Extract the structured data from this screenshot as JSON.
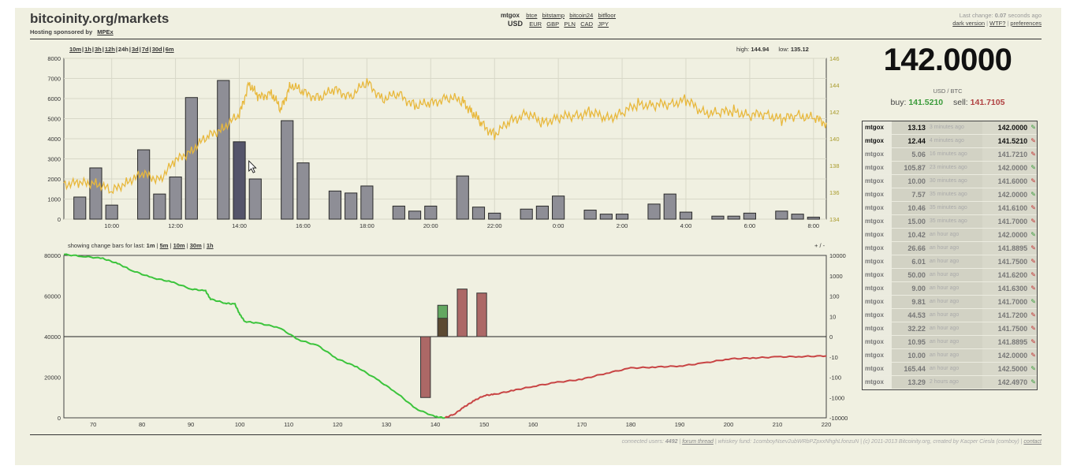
{
  "header": {
    "site_title": "bitcoinity.org/markets",
    "sponsor_prefix": "Hosting sponsored by",
    "sponsor_link": "MPEx"
  },
  "exchanges": {
    "selected": "mtgox",
    "others": [
      "btce",
      "bitstamp",
      "bitcoin24",
      "bitfloor"
    ],
    "currency_selected": "USD",
    "currencies": [
      "EUR",
      "GBP",
      "PLN",
      "CAD",
      "JPY"
    ]
  },
  "top_right": {
    "last_change_prefix": "Last change:",
    "last_change_value": "0.07",
    "last_change_suffix": "seconds ago",
    "links": [
      "dark version",
      "WTF?",
      "preferences"
    ]
  },
  "ranges": {
    "items": [
      "10m",
      "1h",
      "3h",
      "12h",
      "24h",
      "3d",
      "7d",
      "30d",
      "6m"
    ],
    "selected": "24h"
  },
  "hilo": {
    "high_label": "high:",
    "high_value": "144.94",
    "low_label": "low:",
    "low_value": "135.12"
  },
  "ticker": {
    "price": "142.0000",
    "pair": "USD / BTC",
    "buy_label": "buy:",
    "buy_value": "141.5210",
    "sell_label": "sell:",
    "sell_value": "141.7105"
  },
  "change_bars": {
    "prefix": "showing change bars for last:",
    "options": [
      "1m",
      "5m",
      "10m",
      "30m",
      "1h"
    ],
    "plusminus": "+ / -"
  },
  "trades": [
    {
      "exchange": "mtgox",
      "amount": "13.13",
      "ago": "3 minutes ago",
      "price": "142.0000",
      "dir": "up"
    },
    {
      "exchange": "mtgox",
      "amount": "12.44",
      "ago": "4 minutes ago",
      "price": "141.5210",
      "dir": "down"
    },
    {
      "exchange": "mtgox",
      "amount": "5.06",
      "ago": "16 minutes ago",
      "price": "141.7210",
      "dir": "down"
    },
    {
      "exchange": "mtgox",
      "amount": "105.87",
      "ago": "23 minutes ago",
      "price": "142.0000",
      "dir": "up"
    },
    {
      "exchange": "mtgox",
      "amount": "10.00",
      "ago": "30 minutes ago",
      "price": "141.6000",
      "dir": "down"
    },
    {
      "exchange": "mtgox",
      "amount": "7.57",
      "ago": "35 minutes ago",
      "price": "142.0000",
      "dir": "up"
    },
    {
      "exchange": "mtgox",
      "amount": "10.46",
      "ago": "35 minutes ago",
      "price": "141.6100",
      "dir": "down"
    },
    {
      "exchange": "mtgox",
      "amount": "15.00",
      "ago": "35 minutes ago",
      "price": "141.7000",
      "dir": "down"
    },
    {
      "exchange": "mtgox",
      "amount": "10.42",
      "ago": "an hour ago",
      "price": "142.0000",
      "dir": "up"
    },
    {
      "exchange": "mtgox",
      "amount": "26.66",
      "ago": "an hour ago",
      "price": "141.8895",
      "dir": "down"
    },
    {
      "exchange": "mtgox",
      "amount": "6.01",
      "ago": "an hour ago",
      "price": "141.7500",
      "dir": "down"
    },
    {
      "exchange": "mtgox",
      "amount": "50.00",
      "ago": "an hour ago",
      "price": "141.6200",
      "dir": "down"
    },
    {
      "exchange": "mtgox",
      "amount": "9.00",
      "ago": "an hour ago",
      "price": "141.6300",
      "dir": "down"
    },
    {
      "exchange": "mtgox",
      "amount": "9.81",
      "ago": "an hour ago",
      "price": "141.7000",
      "dir": "up"
    },
    {
      "exchange": "mtgox",
      "amount": "44.53",
      "ago": "an hour ago",
      "price": "141.7200",
      "dir": "down"
    },
    {
      "exchange": "mtgox",
      "amount": "32.22",
      "ago": "an hour ago",
      "price": "141.7500",
      "dir": "down"
    },
    {
      "exchange": "mtgox",
      "amount": "10.95",
      "ago": "an hour ago",
      "price": "141.8895",
      "dir": "down"
    },
    {
      "exchange": "mtgox",
      "amount": "10.00",
      "ago": "an hour ago",
      "price": "142.0000",
      "dir": "down"
    },
    {
      "exchange": "mtgox",
      "amount": "165.44",
      "ago": "an hour ago",
      "price": "142.5000",
      "dir": "up"
    },
    {
      "exchange": "mtgox",
      "amount": "13.29",
      "ago": "2 hours ago",
      "price": "142.4970",
      "dir": "up"
    }
  ],
  "footer": {
    "connected_label": "connected users:",
    "connected_value": "4492",
    "forum_link": "forum thread",
    "fund_text": "whiskey fund: 1comboyNsev2ubWRbPZpxxNhghLfonzuN",
    "copyright": "(c) 2011-2013 Bitcoinity.org, created by Kacper Ciesla (comboy)",
    "contact_link": "contact"
  },
  "colors": {
    "price_line": "#e8b83c",
    "volume_bar": "#8e8e96",
    "volume_bar_hover": "#55556a",
    "bid_line": "#3cc43c",
    "ask_line": "#c84444",
    "change_up": "#4a9a4a",
    "change_down": "#a05050"
  },
  "chart_data": [
    {
      "type": "bar+line",
      "name_hint": "price-volume",
      "x_ticks": [
        "10:00",
        "12:00",
        "14:00",
        "16:00",
        "18:00",
        "20:00",
        "22:00",
        "0:00",
        "2:00",
        "4:00",
        "6:00",
        "8:00"
      ],
      "x_range_hours": [
        8.5,
        32.4
      ],
      "y_left_ticks": [
        0,
        1000,
        2000,
        3000,
        4000,
        5000,
        6000,
        7000,
        8000
      ],
      "y_left_range": [
        0,
        8000
      ],
      "y_right_ticks": [
        134,
        136,
        138,
        140,
        142,
        144,
        146
      ],
      "y_right_range": [
        134,
        146
      ],
      "volume_bars": {
        "hours": [
          9,
          9.5,
          10,
          11,
          11.5,
          12,
          12.5,
          13.5,
          14,
          14.5,
          15.5,
          16,
          17,
          17.5,
          18,
          19,
          19.5,
          20,
          21,
          21.5,
          22,
          23,
          23.5,
          24,
          25,
          25.5,
          26,
          27,
          27.5,
          28,
          29,
          29.5,
          30,
          31,
          31.5,
          32
        ],
        "values": [
          1100,
          2550,
          700,
          3450,
          1250,
          2100,
          6050,
          6900,
          3850,
          2000,
          4900,
          2800,
          1400,
          1300,
          1650,
          650,
          400,
          650,
          2150,
          600,
          300,
          500,
          650,
          1150,
          450,
          250,
          250,
          750,
          1250,
          350,
          150,
          150,
          300,
          400,
          250,
          100
        ],
        "highlighted_index": 8
      },
      "price_line": {
        "hours": [
          8.5,
          9,
          9.5,
          10,
          10.5,
          11,
          11.5,
          12,
          12.5,
          13,
          13.5,
          14,
          14.3,
          14.6,
          15,
          15.3,
          15.6,
          16,
          16.5,
          17,
          17.5,
          18,
          18.5,
          19,
          19.5,
          20,
          20.5,
          21,
          21.3,
          21.6,
          22,
          22.5,
          23,
          23.5,
          24,
          24.5,
          25,
          25.5,
          26,
          26.5,
          27,
          27.5,
          28,
          28.5,
          29,
          29.5,
          30,
          30.5,
          31,
          31.5,
          32,
          32.4
        ],
        "values": [
          136.7,
          136.6,
          136.8,
          136.0,
          136.9,
          137.3,
          137.0,
          138.3,
          139.2,
          140.1,
          140.9,
          141.7,
          144.2,
          143.0,
          143.5,
          142.1,
          144.1,
          143.4,
          143.1,
          143.6,
          143.2,
          144.2,
          143.0,
          143.3,
          142.5,
          142.6,
          143.1,
          142.8,
          142.0,
          141.1,
          140.3,
          141.3,
          141.9,
          141.2,
          141.6,
          141.7,
          142.0,
          141.5,
          141.9,
          142.6,
          142.5,
          142.6,
          142.9,
          142.0,
          141.9,
          142.1,
          141.7,
          141.9,
          141.4,
          141.8,
          141.5,
          141.2
        ]
      }
    },
    {
      "type": "line+bar",
      "name_hint": "depth-change",
      "x_ticks": [
        70,
        80,
        90,
        100,
        110,
        120,
        130,
        140,
        150,
        160,
        170,
        180,
        190,
        200,
        210,
        220
      ],
      "x_range": [
        64,
        220
      ],
      "y_left_ticks": [
        0,
        20000,
        40000,
        60000,
        80000
      ],
      "y_left_range": [
        0,
        80000
      ],
      "y_right_ticks": [
        "10000",
        "1000",
        "100",
        "10",
        "0",
        "-10",
        "-100",
        "-1000",
        "-10000"
      ],
      "bids": {
        "x": [
          64,
          68,
          72,
          75,
          78,
          82,
          86,
          90,
          93,
          94,
          97,
          99,
          100,
          101,
          104,
          108,
          112,
          116,
          120,
          124,
          128,
          132,
          136,
          140,
          142
        ],
        "y": [
          80500,
          79500,
          78500,
          76000,
          72500,
          69000,
          67000,
          63500,
          62500,
          58500,
          56500,
          56000,
          51000,
          47500,
          46500,
          44500,
          38500,
          35500,
          29000,
          25000,
          19000,
          12500,
          4500,
          500,
          0
        ]
      },
      "asks": {
        "x": [
          142,
          144,
          146,
          148,
          150,
          152,
          156,
          160,
          165,
          170,
          175,
          180,
          185,
          190,
          195,
          200,
          205,
          210,
          215,
          220
        ],
        "y": [
          0,
          2000,
          5500,
          8500,
          11000,
          11500,
          13500,
          15500,
          17500,
          19000,
          22000,
          24500,
          25000,
          25500,
          27000,
          29000,
          29500,
          30000,
          30200,
          30500
        ]
      },
      "change_bars": [
        {
          "x": 138,
          "down": "-1000"
        },
        {
          "x": 141.5,
          "up": "35",
          "down_overlay": "8"
        },
        {
          "x": 145.5,
          "up": "220"
        },
        {
          "x": 149.5,
          "up": "140"
        }
      ]
    }
  ]
}
